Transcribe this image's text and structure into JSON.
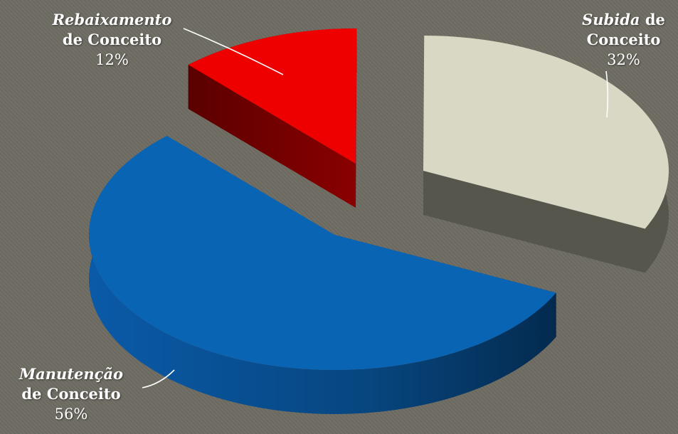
{
  "chart_data": {
    "type": "pie",
    "title": "",
    "slices": [
      {
        "label_italic": "Rebaixamento",
        "label_rest": "de Conceito",
        "value": 12,
        "value_text": "12%",
        "color": "#ee0000",
        "side": "#6b0000"
      },
      {
        "label_italic": "Subida",
        "label_rest_inline": "de",
        "label_rest": "Conceito",
        "value": 32,
        "value_text": "32%",
        "color": "#d8d8c4",
        "side": "#56564c"
      },
      {
        "label_italic": "Manutenção",
        "label_rest": "de Conceito",
        "value": 56,
        "value_text": "56%",
        "color": "#0a64b4",
        "side": "#063a6e"
      }
    ],
    "legend": "none",
    "style": "3d-exploded"
  }
}
